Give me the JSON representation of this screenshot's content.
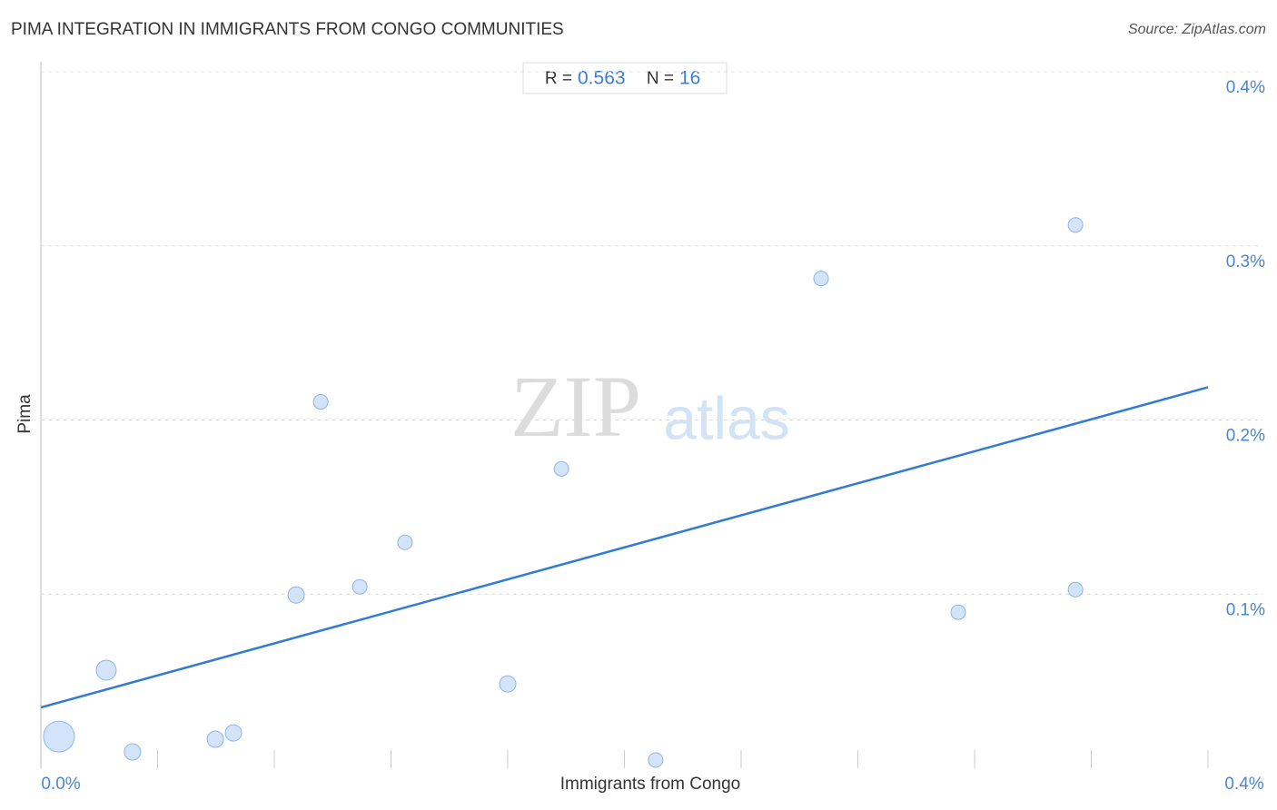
{
  "chart_data": {
    "type": "scatter",
    "title": "PIMA INTEGRATION IN IMMIGRANTS FROM CONGO COMMUNITIES",
    "source": "Source: ZipAtlas.com",
    "x_label": "Immigrants from Congo",
    "y_label": "Pima",
    "watermark": [
      "ZIP",
      "atlas"
    ],
    "stats": {
      "r_label": "R =",
      "r": 0.563,
      "n_label": "N =",
      "n": 16
    },
    "x": [
      0.0062,
      0.0224,
      0.0314,
      0.0598,
      0.066,
      0.0875,
      0.0959,
      0.1093,
      0.1248,
      0.16,
      0.1784,
      0.2107,
      0.2674,
      0.3144,
      0.3546,
      0.3546
    ],
    "values": [
      0.0182,
      0.0563,
      0.0094,
      0.0167,
      0.0203,
      0.0995,
      0.2104,
      0.1042,
      0.1297,
      0.0484,
      0.1719,
      0.0047,
      0.2813,
      0.0896,
      0.312,
      0.1026
    ],
    "sizes": [
      17,
      11,
      9,
      9,
      9,
      9,
      8,
      8,
      8,
      9,
      8,
      8,
      8,
      8,
      8,
      8
    ],
    "color": "#c5dbf6",
    "trendline": {
      "x": [
        0,
        0.4
      ],
      "y": [
        0.0349,
        0.2188
      ],
      "color": "#2f7bd6"
    },
    "xlim": [
      0,
      0.4
    ],
    "ylim": [
      0,
      0.4
    ],
    "xticks": [
      {
        "value": 0,
        "label": "0.0%"
      },
      {
        "value": 0.4,
        "label": "0.4%"
      }
    ],
    "xminorticks": [
      0.04,
      0.08,
      0.12,
      0.16,
      0.2,
      0.24,
      0.28,
      0.32,
      0.36,
      0.4
    ],
    "yticks": [
      {
        "value": 0.1,
        "label": "0.1%"
      },
      {
        "value": 0.2,
        "label": "0.2%"
      },
      {
        "value": 0.3,
        "label": "0.3%"
      },
      {
        "value": 0.4,
        "label": "0.4%"
      }
    ],
    "grid": true
  }
}
